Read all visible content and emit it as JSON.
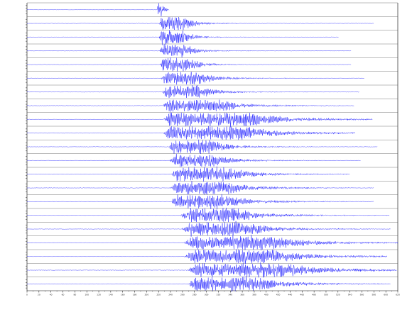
{
  "chart_data": {
    "type": "line",
    "title": "",
    "xlabel": "",
    "ylabel": "",
    "xlim": [
      0,
      620
    ],
    "x_ticks": [
      0,
      20,
      40,
      60,
      80,
      100,
      120,
      140,
      160,
      180,
      200,
      220,
      240,
      260,
      280,
      300,
      320,
      340,
      360,
      380,
      400,
      420,
      440,
      460,
      480,
      500,
      520,
      540,
      560,
      580,
      600,
      620
    ],
    "grid": false,
    "legend": "none",
    "trace_color": "#1a1aff",
    "axis_color": "#000000",
    "series": [
      {
        "onset": 218,
        "duration": 20,
        "rise": 3,
        "decay": 5,
        "amp": 1.0,
        "seed": 3
      },
      {
        "onset": 220,
        "duration": 360,
        "rise": 6,
        "decay": 40,
        "amp": 0.9,
        "seed": 7
      },
      {
        "onset": 221,
        "duration": 300,
        "rise": 5,
        "decay": 35,
        "amp": 1.0,
        "seed": 11
      },
      {
        "onset": 222,
        "duration": 320,
        "rise": 5,
        "decay": 40,
        "amp": 0.9,
        "seed": 13
      },
      {
        "onset": 222,
        "duration": 320,
        "rise": 6,
        "decay": 45,
        "amp": 0.9,
        "seed": 17
      },
      {
        "onset": 224,
        "duration": 340,
        "rise": 8,
        "decay": 60,
        "amp": 0.9,
        "seed": 19
      },
      {
        "onset": 226,
        "duration": 330,
        "rise": 8,
        "decay": 60,
        "amp": 0.9,
        "seed": 23
      },
      {
        "onset": 227,
        "duration": 320,
        "rise": 10,
        "decay": 90,
        "amp": 0.9,
        "seed": 29
      },
      {
        "onset": 228,
        "duration": 350,
        "rise": 12,
        "decay": 140,
        "amp": 1.0,
        "seed": 31
      },
      {
        "onset": 228,
        "duration": 320,
        "rise": 12,
        "decay": 130,
        "amp": 1.0,
        "seed": 37
      },
      {
        "onset": 236,
        "duration": 350,
        "rise": 10,
        "decay": 70,
        "amp": 0.9,
        "seed": 41
      },
      {
        "onset": 238,
        "duration": 320,
        "rise": 10,
        "decay": 70,
        "amp": 0.9,
        "seed": 43
      },
      {
        "onset": 240,
        "duration": 300,
        "rise": 12,
        "decay": 90,
        "amp": 1.0,
        "seed": 47
      },
      {
        "onset": 240,
        "duration": 340,
        "rise": 12,
        "decay": 90,
        "amp": 1.0,
        "seed": 53
      },
      {
        "onset": 240,
        "duration": 340,
        "rise": 12,
        "decay": 90,
        "amp": 1.0,
        "seed": 59
      },
      {
        "onset": 256,
        "duration": 350,
        "rise": 16,
        "decay": 90,
        "amp": 1.0,
        "seed": 61
      },
      {
        "onset": 258,
        "duration": 350,
        "rise": 16,
        "decay": 100,
        "amp": 1.0,
        "seed": 67
      },
      {
        "onset": 262,
        "duration": 360,
        "rise": 18,
        "decay": 140,
        "amp": 1.0,
        "seed": 71
      },
      {
        "onset": 262,
        "duration": 340,
        "rise": 18,
        "decay": 140,
        "amp": 1.0,
        "seed": 73
      },
      {
        "onset": 268,
        "duration": 350,
        "rise": 16,
        "decay": 160,
        "amp": 1.0,
        "seed": 79
      },
      {
        "onset": 268,
        "duration": 340,
        "rise": 16,
        "decay": 110,
        "amp": 1.0,
        "seed": 83
      }
    ]
  }
}
